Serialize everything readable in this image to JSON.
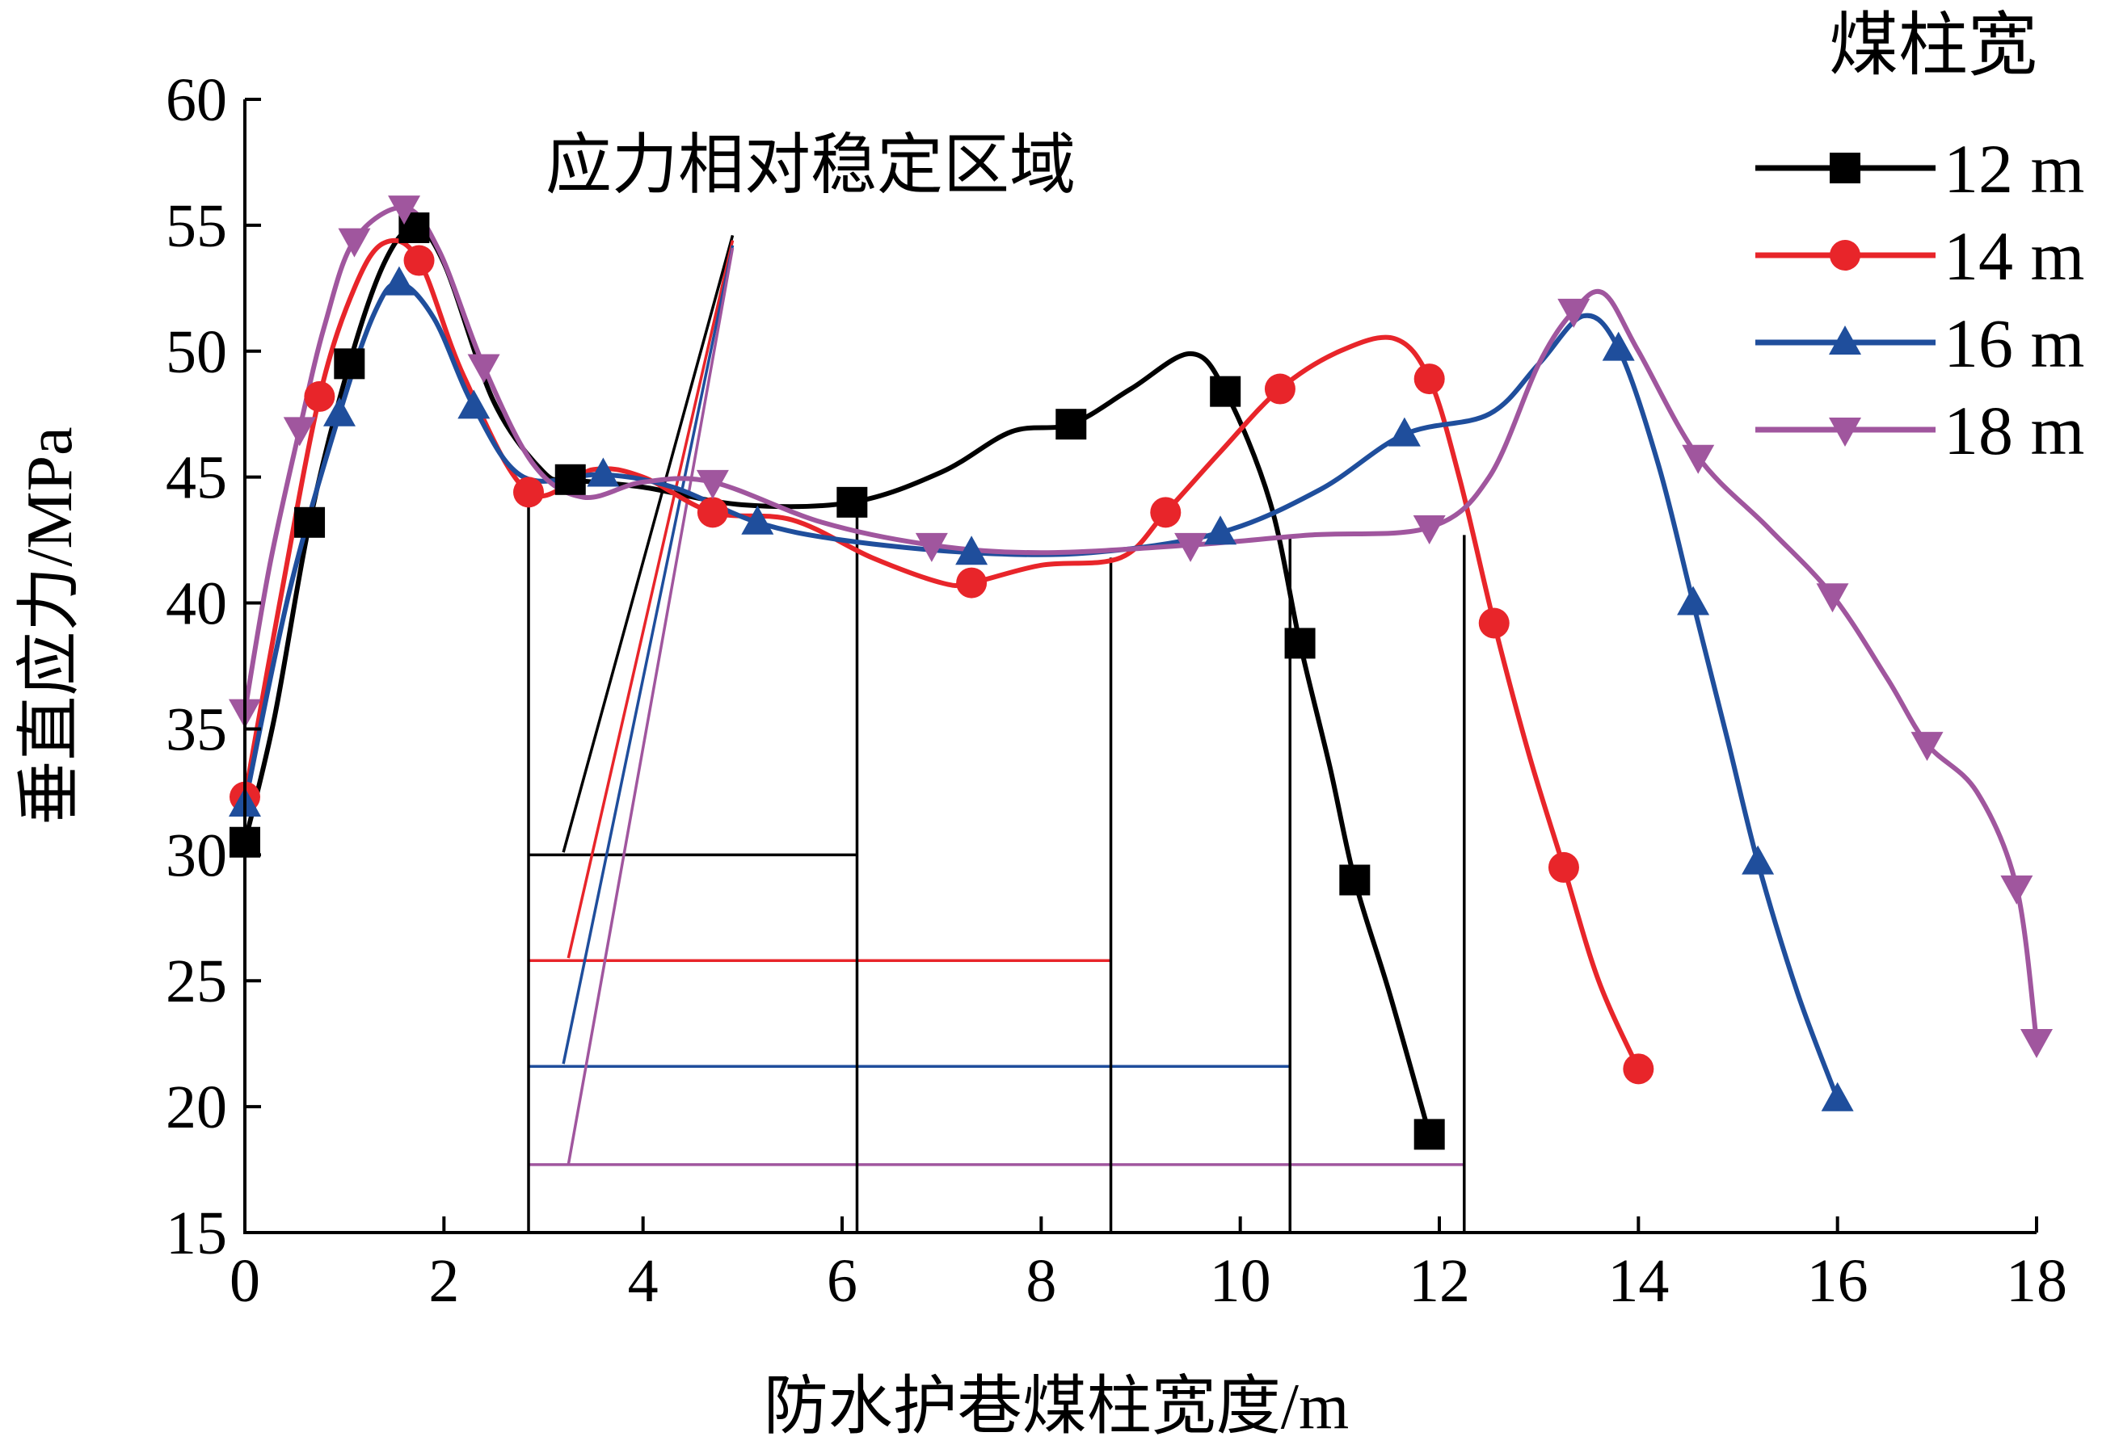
{
  "chart_data": {
    "type": "line",
    "xlabel": "防水护巷煤柱宽度/m",
    "ylabel": "垂直应力/MPa",
    "xlim": [
      0,
      18
    ],
    "ylim": [
      15,
      60
    ],
    "xticks": [
      0,
      2,
      4,
      6,
      8,
      10,
      12,
      14,
      16,
      18
    ],
    "yticks": [
      15,
      20,
      25,
      30,
      35,
      40,
      45,
      50,
      55,
      60
    ],
    "legend_title": "煤柱宽",
    "legend_position": "top-right",
    "annotation": "应力相对稳定区域",
    "series": [
      {
        "name": "12 m",
        "color": "#000000",
        "marker": "square",
        "points": [
          [
            0,
            30.5
          ],
          [
            0.65,
            43.2
          ],
          [
            1.05,
            49.5
          ],
          [
            1.7,
            54.9
          ],
          [
            3.27,
            44.9
          ],
          [
            6.1,
            44.0
          ],
          [
            8.3,
            47.1
          ],
          [
            9.85,
            48.4
          ],
          [
            10.6,
            38.4
          ],
          [
            11.15,
            29.0
          ],
          [
            11.9,
            18.9
          ]
        ],
        "curve": [
          [
            0,
            30.5
          ],
          [
            0.3,
            35.5
          ],
          [
            0.65,
            43.2
          ],
          [
            1.05,
            49.5
          ],
          [
            1.4,
            53.5
          ],
          [
            1.7,
            54.9
          ],
          [
            2.0,
            53.5
          ],
          [
            2.5,
            48.0
          ],
          [
            3.0,
            45.2
          ],
          [
            3.27,
            44.9
          ],
          [
            4.0,
            44.6
          ],
          [
            5.0,
            43.9
          ],
          [
            6.1,
            44.0
          ],
          [
            7.0,
            45.2
          ],
          [
            7.7,
            46.8
          ],
          [
            8.3,
            47.1
          ],
          [
            8.9,
            48.5
          ],
          [
            9.5,
            49.9
          ],
          [
            9.85,
            48.4
          ],
          [
            10.3,
            44.0
          ],
          [
            10.6,
            38.4
          ],
          [
            10.9,
            33.5
          ],
          [
            11.15,
            29.0
          ],
          [
            11.5,
            24.5
          ],
          [
            11.9,
            18.9
          ]
        ],
        "stable_zone": {
          "x_start": 2.85,
          "x_end": 6.15,
          "level": 30.0,
          "pointer_base": [
            3.2,
            30.1
          ],
          "pointer_tip": [
            4.9,
            54.6
          ]
        }
      },
      {
        "name": "14 m",
        "color": "#e8252a",
        "marker": "circle",
        "points": [
          [
            0,
            32.3
          ],
          [
            0.75,
            48.2
          ],
          [
            1.75,
            53.6
          ],
          [
            2.85,
            44.4
          ],
          [
            4.7,
            43.6
          ],
          [
            7.3,
            40.8
          ],
          [
            9.25,
            43.6
          ],
          [
            10.4,
            48.5
          ],
          [
            11.9,
            48.9
          ],
          [
            12.55,
            39.2
          ],
          [
            13.25,
            29.5
          ],
          [
            14.0,
            21.5
          ]
        ],
        "curve": [
          [
            0,
            32.3
          ],
          [
            0.35,
            40.0
          ],
          [
            0.75,
            48.2
          ],
          [
            1.1,
            52.5
          ],
          [
            1.4,
            54.3
          ],
          [
            1.75,
            53.6
          ],
          [
            2.2,
            49.0
          ],
          [
            2.85,
            44.4
          ],
          [
            3.5,
            45.3
          ],
          [
            4.0,
            45.0
          ],
          [
            4.7,
            43.6
          ],
          [
            5.5,
            43.3
          ],
          [
            6.3,
            41.8
          ],
          [
            7.0,
            40.8
          ],
          [
            7.3,
            40.8
          ],
          [
            8.0,
            41.5
          ],
          [
            8.8,
            41.8
          ],
          [
            9.25,
            43.6
          ],
          [
            9.8,
            46.0
          ],
          [
            10.4,
            48.5
          ],
          [
            11.0,
            50.0
          ],
          [
            11.55,
            50.5
          ],
          [
            11.9,
            48.9
          ],
          [
            12.2,
            45.0
          ],
          [
            12.55,
            39.2
          ],
          [
            12.9,
            34.0
          ],
          [
            13.25,
            29.5
          ],
          [
            13.6,
            25.0
          ],
          [
            14.0,
            21.5
          ]
        ],
        "stable_zone": {
          "x_start": 2.85,
          "x_end": 8.7,
          "level": 25.8,
          "pointer_base": [
            3.25,
            25.9
          ],
          "pointer_tip": [
            4.9,
            54.4
          ]
        }
      },
      {
        "name": "16 m",
        "color": "#1f4e9c",
        "marker": "triangle-up",
        "points": [
          [
            0,
            32.0
          ],
          [
            0.95,
            47.5
          ],
          [
            1.55,
            52.7
          ],
          [
            2.3,
            47.8
          ],
          [
            3.6,
            45.1
          ],
          [
            5.15,
            43.2
          ],
          [
            7.3,
            42.0
          ],
          [
            9.8,
            42.8
          ],
          [
            11.65,
            46.7
          ],
          [
            13.8,
            50.1
          ],
          [
            14.55,
            40.0
          ],
          [
            15.2,
            29.7
          ],
          [
            16.0,
            20.3
          ]
        ],
        "curve": [
          [
            0,
            32.0
          ],
          [
            0.45,
            40.5
          ],
          [
            0.95,
            47.5
          ],
          [
            1.3,
            51.5
          ],
          [
            1.55,
            52.7
          ],
          [
            1.9,
            51.3
          ],
          [
            2.3,
            47.8
          ],
          [
            2.8,
            45.0
          ],
          [
            3.6,
            45.1
          ],
          [
            4.3,
            44.6
          ],
          [
            5.15,
            43.2
          ],
          [
            6.0,
            42.5
          ],
          [
            7.3,
            42.0
          ],
          [
            8.5,
            42.0
          ],
          [
            9.8,
            42.8
          ],
          [
            10.8,
            44.5
          ],
          [
            11.65,
            46.7
          ],
          [
            12.5,
            47.5
          ],
          [
            13.0,
            49.5
          ],
          [
            13.45,
            51.4
          ],
          [
            13.8,
            50.1
          ],
          [
            14.2,
            45.5
          ],
          [
            14.55,
            40.0
          ],
          [
            14.9,
            34.5
          ],
          [
            15.2,
            29.7
          ],
          [
            15.6,
            24.5
          ],
          [
            16.0,
            20.3
          ]
        ],
        "stable_zone": {
          "x_start": 2.85,
          "x_end": 10.5,
          "level": 21.6,
          "pointer_base": [
            3.2,
            21.7
          ],
          "pointer_tip": [
            4.9,
            54.2
          ]
        }
      },
      {
        "name": "18 m",
        "color": "#a0569e",
        "marker": "triangle-down",
        "points": [
          [
            0,
            35.7
          ],
          [
            0.55,
            46.9
          ],
          [
            1.1,
            54.4
          ],
          [
            1.6,
            55.7
          ],
          [
            2.4,
            49.4
          ],
          [
            4.7,
            44.8
          ],
          [
            6.9,
            42.3
          ],
          [
            9.5,
            42.3
          ],
          [
            11.9,
            43.0
          ],
          [
            13.35,
            51.6
          ],
          [
            14.6,
            45.8
          ],
          [
            15.95,
            40.3
          ],
          [
            16.9,
            34.4
          ],
          [
            17.8,
            28.7
          ],
          [
            18.0,
            22.6
          ]
        ],
        "curve": [
          [
            0,
            35.7
          ],
          [
            0.25,
            41.5
          ],
          [
            0.55,
            46.9
          ],
          [
            0.8,
            51.0
          ],
          [
            1.1,
            54.4
          ],
          [
            1.6,
            55.7
          ],
          [
            1.95,
            54.0
          ],
          [
            2.4,
            49.4
          ],
          [
            2.9,
            45.5
          ],
          [
            3.4,
            44.2
          ],
          [
            4.0,
            44.8
          ],
          [
            4.7,
            44.8
          ],
          [
            5.8,
            43.2
          ],
          [
            6.9,
            42.3
          ],
          [
            8.0,
            42.0
          ],
          [
            9.5,
            42.3
          ],
          [
            10.7,
            42.7
          ],
          [
            11.9,
            43.0
          ],
          [
            12.5,
            45.0
          ],
          [
            13.0,
            49.5
          ],
          [
            13.35,
            51.6
          ],
          [
            13.65,
            52.3
          ],
          [
            14.0,
            50.0
          ],
          [
            14.6,
            45.8
          ],
          [
            15.3,
            43.0
          ],
          [
            15.95,
            40.3
          ],
          [
            16.5,
            37.0
          ],
          [
            16.9,
            34.4
          ],
          [
            17.4,
            32.5
          ],
          [
            17.8,
            28.7
          ],
          [
            18.0,
            22.6
          ]
        ],
        "stable_zone": {
          "x_start": 2.85,
          "x_end": 12.25,
          "level": 17.7,
          "pointer_base": [
            3.25,
            17.7
          ],
          "pointer_tip": [
            4.9,
            54.1
          ]
        }
      }
    ]
  }
}
